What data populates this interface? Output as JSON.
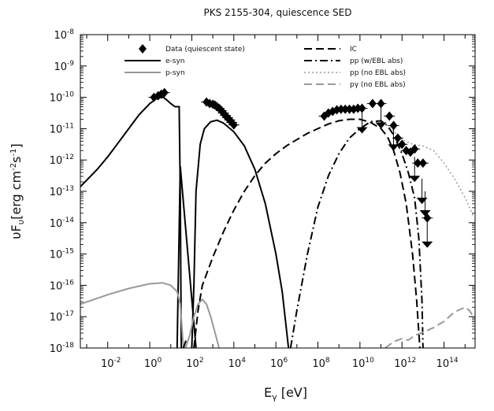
{
  "chart_data": {
    "type": "line",
    "title": "PKS 2155-304, quiescence SED",
    "xlabel": {
      "base": "E",
      "sub": "γ",
      "rest": " [eV]"
    },
    "ylabel": {
      "pre": "υF",
      "sub": "υ",
      "mid": "[erg cm",
      "sup1": "-2",
      "s": "s",
      "sup2": "-1",
      "end": "]"
    },
    "xscale": "log",
    "yscale": "log",
    "xlim": [
      0.0005,
      3000000000000000.0
    ],
    "ylim": [
      1e-18,
      1e-08
    ],
    "x_ticks": [
      {
        "value": 0.01,
        "base": "10",
        "exp": "-2"
      },
      {
        "value": 1,
        "base": "10",
        "exp": "0"
      },
      {
        "value": 100,
        "base": "10",
        "exp": "2"
      },
      {
        "value": 10000,
        "base": "10",
        "exp": "4"
      },
      {
        "value": 1000000.0,
        "base": "10",
        "exp": "6"
      },
      {
        "value": 100000000.0,
        "base": "10",
        "exp": "8"
      },
      {
        "value": 10000000000.0,
        "base": "10",
        "exp": "10"
      },
      {
        "value": 1000000000000.0,
        "base": "10",
        "exp": "12"
      },
      {
        "value": 100000000000000.0,
        "base": "10",
        "exp": "14"
      }
    ],
    "y_ticks": [
      {
        "value": 1e-08,
        "base": "10",
        "exp": "-8"
      },
      {
        "value": 1e-09,
        "base": "10",
        "exp": "-9"
      },
      {
        "value": 1e-10,
        "base": "10",
        "exp": "-10"
      },
      {
        "value": 1e-11,
        "base": "10",
        "exp": "-11"
      },
      {
        "value": 1e-12,
        "base": "10",
        "exp": "-12"
      },
      {
        "value": 1e-13,
        "base": "10",
        "exp": "-13"
      },
      {
        "value": 1e-14,
        "base": "10",
        "exp": "-14"
      },
      {
        "value": 1e-15,
        "base": "10",
        "exp": "-15"
      },
      {
        "value": 1e-16,
        "base": "10",
        "exp": "-16"
      },
      {
        "value": 1e-17,
        "base": "10",
        "exp": "-17"
      },
      {
        "value": 1e-18,
        "base": "10",
        "exp": "-18"
      }
    ],
    "legend_left": [
      {
        "label": "Data (quiescent state)",
        "style": "marker",
        "color": "#000000"
      },
      {
        "label": "e-syn",
        "style": "solid",
        "color": "#000000"
      },
      {
        "label": "p-syn",
        "style": "solid",
        "color": "#999999"
      }
    ],
    "legend_right": [
      {
        "label": "IC",
        "style": "dashed",
        "color": "#000000"
      },
      {
        "label": "pp (w/EBL abs)",
        "style": "dashdot",
        "color": "#000000"
      },
      {
        "label": "pp (no EBL abs)",
        "style": "dotted",
        "color": "#999999"
      },
      {
        "label": "pγ (no EBL abs)",
        "style": "dashed",
        "color": "#999999"
      }
    ],
    "series": [
      {
        "name": "e-syn",
        "style": "solid",
        "color": "#000000",
        "segments": [
          [
            [
              -3.3,
              -12.85
            ],
            [
              -2.5,
              -12.3
            ],
            [
              -2,
              -11.9
            ],
            [
              -1.5,
              -11.45
            ],
            [
              -1,
              -11.0
            ],
            [
              -0.5,
              -10.55
            ],
            [
              0,
              -10.2
            ],
            [
              0.3,
              -10.05
            ],
            [
              0.5,
              -10.0
            ],
            [
              0.65,
              -10.0
            ],
            [
              0.8,
              -10.08
            ],
            [
              1.0,
              -10.2
            ],
            [
              1.2,
              -10.3
            ],
            [
              1.4,
              -10.3
            ],
            [
              1.45,
              -13
            ],
            [
              1.5,
              -18
            ]
          ],
          [
            [
              1.3,
              -18
            ],
            [
              1.45,
              -12.2
            ],
            [
              2.2,
              -18
            ]
          ],
          [
            [
              2.0,
              -18
            ],
            [
              2.1,
              -16
            ],
            [
              2.2,
              -13
            ],
            [
              2.4,
              -11.5
            ],
            [
              2.6,
              -11.0
            ],
            [
              2.9,
              -10.78
            ],
            [
              3.2,
              -10.73
            ],
            [
              3.5,
              -10.82
            ],
            [
              4,
              -11.1
            ],
            [
              4.5,
              -11.55
            ],
            [
              5,
              -12.3
            ],
            [
              5.5,
              -13.4
            ],
            [
              6,
              -15.0
            ],
            [
              6.3,
              -16.2
            ],
            [
              6.6,
              -18
            ]
          ]
        ]
      },
      {
        "name": "p-syn",
        "style": "solid",
        "color": "#999999",
        "segments": [
          [
            [
              -3.3,
              -16.6
            ],
            [
              -2,
              -16.3
            ],
            [
              -1,
              -16.1
            ],
            [
              0,
              -15.95
            ],
            [
              0.6,
              -15.92
            ],
            [
              1.0,
              -16.0
            ],
            [
              1.3,
              -16.2
            ],
            [
              1.45,
              -16.6
            ],
            [
              1.6,
              -18
            ]
          ],
          [
            [
              1.7,
              -18
            ],
            [
              1.9,
              -17.6
            ],
            [
              2.1,
              -17.0
            ],
            [
              2.3,
              -16.6
            ],
            [
              2.5,
              -16.45
            ],
            [
              2.7,
              -16.6
            ],
            [
              2.9,
              -17.0
            ],
            [
              3.1,
              -17.5
            ],
            [
              3.3,
              -18
            ]
          ]
        ]
      },
      {
        "name": "IC",
        "style": "dashed",
        "color": "#000000",
        "segments": [
          [
            [
              1.6,
              -18
            ],
            [
              1.75,
              -17.7
            ]
          ],
          [
            [
              2.1,
              -18
            ],
            [
              2.3,
              -16.8
            ],
            [
              2.5,
              -16.0
            ],
            [
              3,
              -15.1
            ],
            [
              3.5,
              -14.3
            ],
            [
              4,
              -13.6
            ],
            [
              4.5,
              -13.0
            ],
            [
              5,
              -12.5
            ],
            [
              5.5,
              -12.1
            ],
            [
              6,
              -11.8
            ],
            [
              6.5,
              -11.55
            ],
            [
              7,
              -11.35
            ],
            [
              7.5,
              -11.15
            ],
            [
              8,
              -11.0
            ],
            [
              8.5,
              -10.85
            ],
            [
              9,
              -10.75
            ],
            [
              9.5,
              -10.7
            ],
            [
              10,
              -10.7
            ],
            [
              10.5,
              -10.8
            ],
            [
              11,
              -11.0
            ],
            [
              11.3,
              -11.25
            ],
            [
              11.6,
              -11.7
            ],
            [
              11.9,
              -12.4
            ],
            [
              12.2,
              -13.4
            ],
            [
              12.5,
              -15.0
            ],
            [
              12.7,
              -16.5
            ],
            [
              12.85,
              -18
            ]
          ]
        ]
      },
      {
        "name": "pp (w/EBL abs)",
        "style": "dashdot",
        "color": "#000000",
        "segments": [
          [
            [
              6.7,
              -18
            ],
            [
              7,
              -16.8
            ],
            [
              7.5,
              -15.0
            ],
            [
              8,
              -13.5
            ],
            [
              8.5,
              -12.5
            ],
            [
              9,
              -11.8
            ],
            [
              9.5,
              -11.3
            ],
            [
              10,
              -11.0
            ],
            [
              10.5,
              -10.78
            ],
            [
              11,
              -10.75
            ],
            [
              11.3,
              -10.9
            ],
            [
              11.6,
              -11.2
            ],
            [
              12,
              -11.8
            ],
            [
              12.3,
              -12.4
            ],
            [
              12.6,
              -13.2
            ],
            [
              12.8,
              -14.5
            ],
            [
              12.95,
              -16.5
            ],
            [
              13.0,
              -18
            ]
          ]
        ]
      },
      {
        "name": "pp (no EBL abs)",
        "style": "dotted",
        "color": "#999999",
        "segments": [
          [
            [
              11.1,
              -10.8
            ],
            [
              11.5,
              -11.0
            ],
            [
              12,
              -11.35
            ],
            [
              12.5,
              -11.5
            ],
            [
              13,
              -11.55
            ],
            [
              13.5,
              -11.7
            ],
            [
              14,
              -12.1
            ],
            [
              14.5,
              -12.6
            ],
            [
              15,
              -13.2
            ],
            [
              15.4,
              -13.8
            ]
          ]
        ]
      },
      {
        "name": "pγ (no EBL abs)",
        "style": "dashed",
        "color": "#999999",
        "segments": [
          [
            [
              11.2,
              -18
            ],
            [
              11.6,
              -17.8
            ],
            [
              12,
              -17.7
            ],
            [
              12.3,
              -17.75
            ],
            [
              12.6,
              -17.6
            ],
            [
              13,
              -17.5
            ],
            [
              13.5,
              -17.35
            ],
            [
              14,
              -17.15
            ],
            [
              14.5,
              -16.85
            ],
            [
              15,
              -16.7
            ],
            [
              15.2,
              -16.8
            ],
            [
              15.4,
              -17.0
            ]
          ]
        ]
      }
    ],
    "data_points": [
      [
        0.2,
        -10.0
      ],
      [
        0.4,
        -9.95
      ],
      [
        0.55,
        -9.9
      ],
      [
        0.7,
        -9.85
      ],
      [
        2.7,
        -10.15
      ],
      [
        2.85,
        -10.2
      ],
      [
        3.0,
        -10.22
      ],
      [
        3.1,
        -10.25
      ],
      [
        3.2,
        -10.3
      ],
      [
        3.3,
        -10.35
      ],
      [
        3.4,
        -10.42
      ],
      [
        3.5,
        -10.5
      ],
      [
        3.6,
        -10.58
      ],
      [
        3.7,
        -10.65
      ],
      [
        3.8,
        -10.72
      ],
      [
        3.9,
        -10.8
      ],
      [
        4.0,
        -10.88
      ],
      [
        8.3,
        -10.6
      ],
      [
        8.5,
        -10.5
      ],
      [
        8.7,
        -10.45
      ],
      [
        8.9,
        -10.4
      ],
      [
        9.1,
        -10.38
      ],
      [
        9.3,
        -10.38
      ],
      [
        9.5,
        -10.38
      ],
      [
        9.7,
        -10.38
      ],
      [
        9.9,
        -10.35
      ],
      [
        10.1,
        -10.35
      ],
      [
        10.6,
        -10.2
      ],
      [
        11.0,
        -10.2
      ],
      [
        11.4,
        -10.6
      ],
      [
        11.6,
        -10.9
      ],
      [
        11.8,
        -11.3
      ],
      [
        12.0,
        -11.5
      ],
      [
        12.2,
        -11.7
      ],
      [
        12.4,
        -11.75
      ],
      [
        12.6,
        -11.65
      ],
      [
        12.75,
        -12.1
      ],
      [
        13.0,
        -12.1
      ],
      [
        13.2,
        -13.85
      ]
    ],
    "upper_limits": [
      [
        10.1,
        -10.35
      ],
      [
        11.0,
        -10.2
      ],
      [
        11.6,
        -10.9
      ],
      [
        12.6,
        -11.9
      ],
      [
        12.95,
        -12.6
      ],
      [
        13.1,
        -13.0
      ],
      [
        13.2,
        -14.0
      ]
    ]
  }
}
